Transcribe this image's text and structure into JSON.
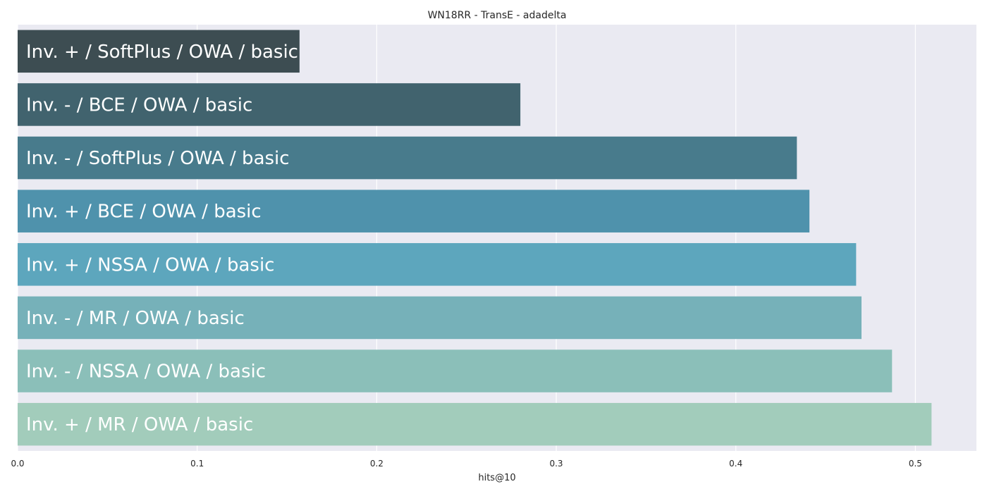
{
  "chart_data": {
    "type": "bar",
    "orientation": "horizontal",
    "title": "WN18RR - TransE - adadelta",
    "xlabel": "hits@10",
    "ylabel": "",
    "xlim": [
      0,
      0.534
    ],
    "xticks": [
      0.0,
      0.1,
      0.2,
      0.3,
      0.4,
      0.5
    ],
    "xtick_labels": [
      "0.0",
      "0.1",
      "0.2",
      "0.3",
      "0.4",
      "0.5"
    ],
    "grid": true,
    "categories": [
      "Inv. + / SoftPlus / OWA / basic",
      "Inv. - / BCE / OWA / basic",
      "Inv. - / SoftPlus / OWA / basic",
      "Inv. + / BCE / OWA / basic",
      "Inv. + / NSSA / OWA / basic",
      "Inv. - / MR / OWA / basic",
      "Inv. - / NSSA / OWA / basic",
      "Inv. + / MR / OWA / basic"
    ],
    "values": [
      0.157,
      0.28,
      0.434,
      0.441,
      0.467,
      0.47,
      0.487,
      0.509
    ],
    "colors": [
      "#3d4d52",
      "#41636e",
      "#487b8c",
      "#4f92ac",
      "#5da6bd",
      "#76b1b9",
      "#8bbfb9",
      "#a2ccbb"
    ],
    "label_color": "#ffffff",
    "plot_background": "#eaeaf2"
  }
}
